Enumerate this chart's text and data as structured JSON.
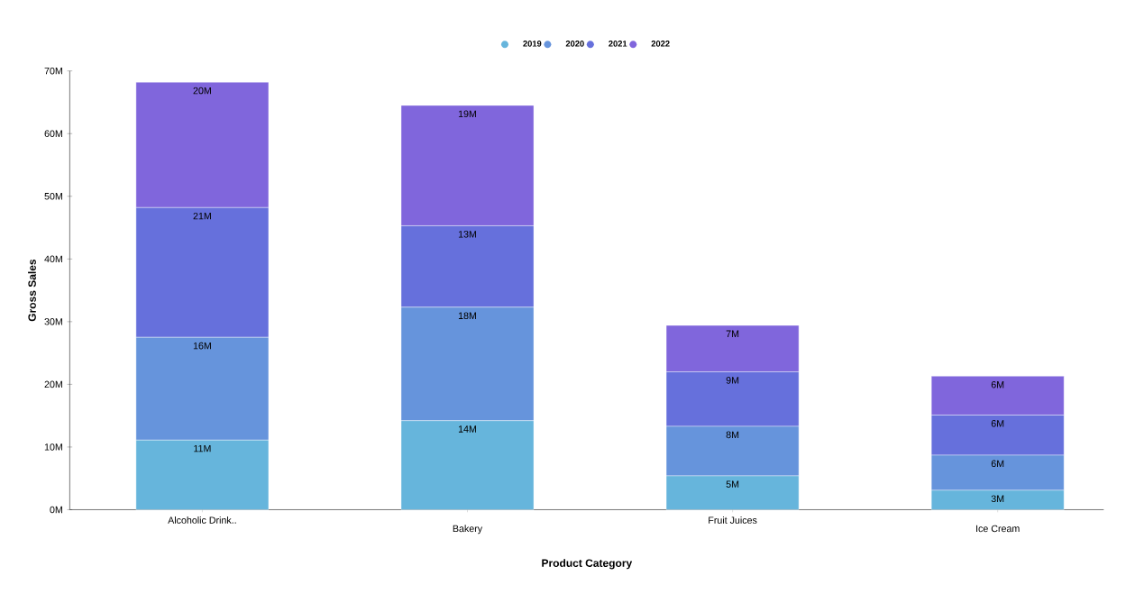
{
  "chart_data": {
    "type": "bar",
    "stacked": true,
    "xlabel": "Product Category",
    "ylabel": "Gross Sales",
    "categories": [
      "Alcoholic Drink..",
      "Bakery",
      "Fruit Juices",
      "Ice Cream"
    ],
    "series": [
      {
        "name": "2019",
        "color": "#66b5dc",
        "values": [
          11.1,
          14.2,
          5.4,
          3.1
        ],
        "value_labels": [
          "11M",
          "14M",
          "5M",
          "3M"
        ]
      },
      {
        "name": "2020",
        "color": "#6694dc",
        "values": [
          16.4,
          18.1,
          7.9,
          5.6
        ],
        "value_labels": [
          "16M",
          "18M",
          "8M",
          "6M"
        ]
      },
      {
        "name": "2021",
        "color": "#6670dc",
        "values": [
          20.7,
          13.0,
          8.7,
          6.4
        ],
        "value_labels": [
          "21M",
          "13M",
          "9M",
          "6M"
        ]
      },
      {
        "name": "2022",
        "color": "#8066dc",
        "values": [
          20.0,
          19.2,
          7.4,
          6.2
        ],
        "value_labels": [
          "20M",
          "19M",
          "7M",
          "6M"
        ]
      }
    ],
    "ylim": [
      0,
      70
    ],
    "yticks": [
      {
        "value": 0,
        "label": "0M"
      },
      {
        "value": 10,
        "label": "10M"
      },
      {
        "value": 20,
        "label": "20M"
      },
      {
        "value": 30,
        "label": "30M"
      },
      {
        "value": 40,
        "label": "40M"
      },
      {
        "value": 50,
        "label": "50M"
      },
      {
        "value": 60,
        "label": "60M"
      },
      {
        "value": 70,
        "label": "70M"
      }
    ],
    "grid": false,
    "legend": "top",
    "marker": "circle"
  }
}
